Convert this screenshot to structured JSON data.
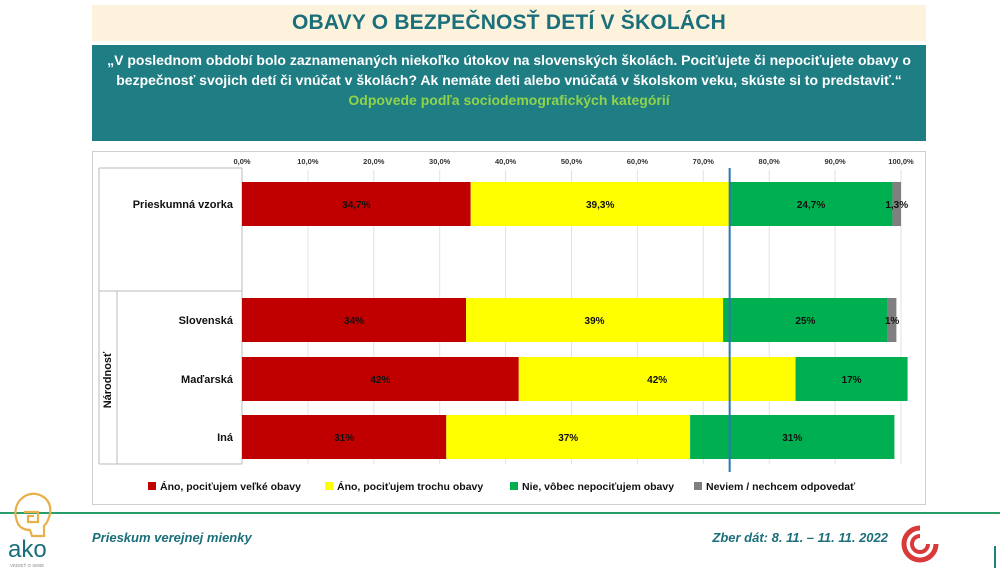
{
  "title": "OBAVY O BEZPEČNOSŤ DETÍ V ŠKOLÁCH",
  "question": "„V poslednom období  bolo zaznamenaných niekoľko útokov na slovenských školách. Pociťujete či nepociťujete obavy o bezpečnosť svojich detí  či vnúčat v školách?  Ak nemáte deti alebo vnúčatá v školskom veku, skúste si to predstaviť.“",
  "subtitle": "Odpovede podľa sociodemografických kategórií",
  "footer": {
    "left": "Prieskum verejnej mienky",
    "right": "Zber dát: 8. 11. – 11. 11. 2022",
    "logo_text": "ako",
    "logo_tagline": "VEDIEŤ O SEBE"
  },
  "colors": {
    "very": "#c00000",
    "somewhat": "#ffff00",
    "no": "#00b050",
    "dontknow": "#7f7f7f",
    "teal": "#1f7d84",
    "reference_line": "#2e75b6"
  },
  "chart_data": {
    "type": "bar",
    "orientation": "horizontal-stacked-100",
    "group_label": "Národnosť",
    "xlim": [
      0,
      100
    ],
    "ticks": [
      "0,0%",
      "10,0%",
      "20,0%",
      "30,0%",
      "40,0%",
      "50,0%",
      "60,0%",
      "70,0%",
      "80,0%",
      "90,0%",
      "100,0%"
    ],
    "reference_line_value": 74,
    "categories": [
      "Prieskumná vzorka",
      "Slovenská",
      "Maďarská",
      "Iná"
    ],
    "series": [
      {
        "name": "Áno, pociťujem veľké obavy",
        "values": [
          34.7,
          34,
          42,
          31
        ],
        "labels": [
          "34,7%",
          "34%",
          "42%",
          "31%"
        ]
      },
      {
        "name": "Áno, pociťujem trochu obavy",
        "values": [
          39.3,
          39,
          42,
          37
        ],
        "labels": [
          "39,3%",
          "39%",
          "42%",
          "37%"
        ]
      },
      {
        "name": "Nie, vôbec nepociťujem obavy",
        "values": [
          24.7,
          25,
          17,
          31
        ],
        "labels": [
          "24,7%",
          "25%",
          "17%",
          "31%"
        ]
      },
      {
        "name": "Neviem / nechcem odpovedať",
        "values": [
          1.3,
          1.3,
          0,
          0
        ],
        "labels": [
          "1,3%",
          "1%",
          "",
          ""
        ]
      }
    ]
  }
}
